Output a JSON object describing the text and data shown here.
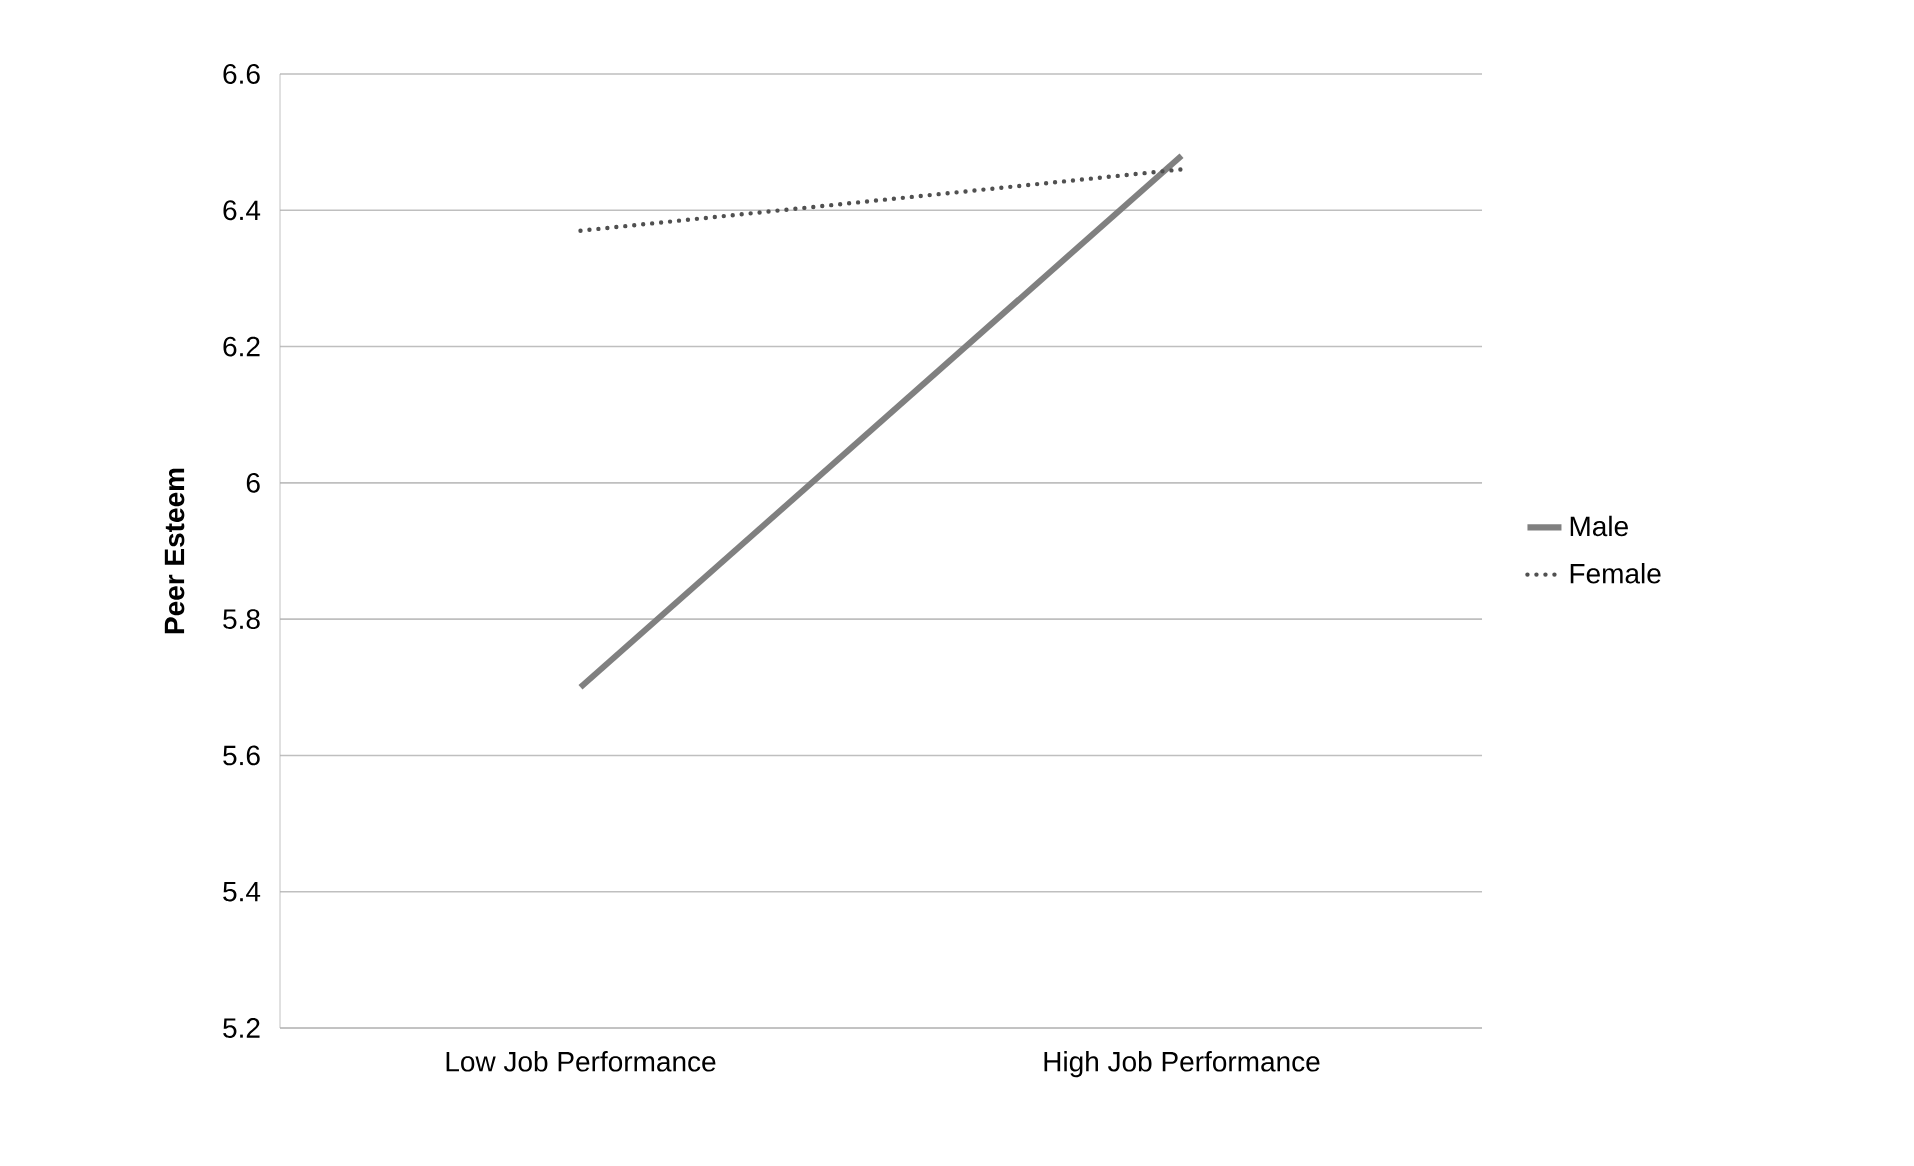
{
  "chart_data": {
    "type": "line",
    "ylabel": "Peer Esteem",
    "categories": [
      "Low Job Performance",
      "High Job Performance"
    ],
    "series": [
      {
        "name": "Male",
        "color": "#808080",
        "values": [
          5.7,
          6.48
        ],
        "line_style": "solid"
      },
      {
        "name": "Female",
        "color": "#505050",
        "values": [
          6.37,
          6.46
        ],
        "line_style": "dotted"
      }
    ],
    "ylim": [
      5.2,
      6.6
    ],
    "yticks": [
      5.2,
      5.4,
      5.6,
      5.8,
      6,
      6.2,
      6.4,
      6.6
    ],
    "grid": "y",
    "legend": "right",
    "marker": "none"
  }
}
